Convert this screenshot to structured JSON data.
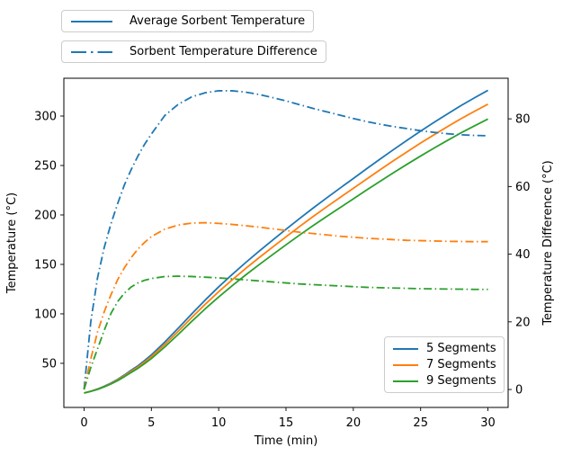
{
  "chart_data": {
    "type": "line",
    "title": "",
    "xlabel": "Time (min)",
    "ylabel_left": "Temperature (°C)",
    "ylabel_right": "Temperature Difference (°C)",
    "xlim": [
      -1.5,
      31.5
    ],
    "ylim_left": [
      5.4,
      338.2
    ],
    "ylim_right": [
      -5.3,
      92
    ],
    "xticks": [
      0,
      5,
      10,
      15,
      20,
      25,
      30
    ],
    "yticks_left": [
      50,
      100,
      150,
      200,
      250,
      300
    ],
    "yticks_right": [
      0,
      20,
      40,
      60,
      80
    ],
    "grid": false,
    "legend_positions": {
      "line_legend": "upper left, outside axes (two stacked boxes)",
      "segment_legend": "lower right"
    },
    "line_legend": [
      {
        "label": "Average Sorbent Temperature",
        "style": "solid",
        "color": "#1f77b4"
      },
      {
        "label": "Sorbent Temperature Difference",
        "style": "dashdot",
        "color": "#1f77b4"
      }
    ],
    "segment_legend": [
      {
        "label": "5 Segments",
        "style": "solid",
        "color": "#1f77b4"
      },
      {
        "label": "7 Segments",
        "style": "solid",
        "color": "#ff7f0e"
      },
      {
        "label": "9 Segments",
        "style": "solid",
        "color": "#2ca02c"
      }
    ],
    "x": [
      0,
      0.5,
      1,
      1.5,
      2,
      2.5,
      3,
      3.5,
      4,
      4.5,
      5,
      6,
      7,
      8,
      9,
      10,
      11,
      12,
      13,
      14,
      15,
      16,
      17,
      18,
      19,
      20,
      21,
      22,
      23,
      24,
      25,
      26,
      27,
      28,
      29,
      30
    ],
    "series": [
      {
        "name": "avg-temp-5-segments",
        "legend": "Average Sorbent Temperature",
        "segments": "5 Segments",
        "axis": "left",
        "style": "solid",
        "color": "#1f77b4",
        "values": [
          20,
          21.8,
          24,
          26.8,
          30,
          33.8,
          38.2,
          43,
          47.5,
          52.8,
          58.5,
          71.5,
          85.5,
          100,
          114,
          127.3,
          139.8,
          151.8,
          163.3,
          174.5,
          185.5,
          196.3,
          206.8,
          217,
          227,
          236.8,
          246.8,
          256.6,
          266.2,
          275.6,
          284.8,
          293.6,
          302.2,
          310.6,
          318.4,
          326
        ]
      },
      {
        "name": "avg-temp-7-segments",
        "legend": "Average Sorbent Temperature",
        "segments": "7 Segments",
        "axis": "left",
        "style": "solid",
        "color": "#ff7f0e",
        "values": [
          20,
          21.7,
          23.8,
          26.5,
          29.5,
          33.2,
          37.4,
          42,
          46.2,
          51.3,
          56.7,
          69.1,
          82.5,
          96.3,
          109.7,
          122.4,
          134.3,
          145.8,
          156.8,
          167.4,
          177.9,
          188.2,
          198.3,
          208,
          217.5,
          226.9,
          236.4,
          245.8,
          255,
          263.9,
          272.7,
          281.1,
          289.3,
          297.3,
          304.8,
          312
        ]
      },
      {
        "name": "avg-temp-9-segments",
        "legend": "Average Sorbent Temperature",
        "segments": "9 Segments",
        "axis": "left",
        "style": "solid",
        "color": "#2ca02c",
        "values": [
          20,
          21.6,
          23.6,
          26.2,
          29.1,
          32.5,
          36.5,
          40.8,
          44.9,
          49.7,
          54.8,
          66.6,
          79.3,
          92.4,
          105.1,
          117.1,
          128.4,
          139.3,
          149.7,
          159.8,
          169.8,
          179.6,
          189.1,
          198.3,
          207.3,
          216.2,
          225.3,
          234.1,
          242.8,
          251.3,
          259.6,
          267.6,
          275.4,
          283,
          290.1,
          297
        ]
      },
      {
        "name": "temp-diff-5-segments",
        "legend": "Sorbent Temperature Difference",
        "segments": "5 Segments",
        "axis": "right",
        "style": "dashdot",
        "color": "#1f77b4",
        "values": [
          0,
          20,
          33,
          42,
          49,
          55,
          60.5,
          65,
          69,
          72.5,
          75.5,
          81,
          84.3,
          86.5,
          87.7,
          88.3,
          88.3,
          87.9,
          87.2,
          86.3,
          85.3,
          84.2,
          83.1,
          82.1,
          81.1,
          80.1,
          79.2,
          78.4,
          77.7,
          77.1,
          76.5,
          76,
          75.6,
          75.3,
          75.1,
          75
        ]
      },
      {
        "name": "temp-diff-7-segments",
        "legend": "Sorbent Temperature Difference",
        "segments": "7 Segments",
        "axis": "right",
        "style": "dashdot",
        "color": "#ff7f0e",
        "values": [
          0,
          9,
          17,
          23,
          28,
          32.5,
          36,
          39,
          41.5,
          43.5,
          45.2,
          47.4,
          48.6,
          49.2,
          49.3,
          49.1,
          48.8,
          48.4,
          48,
          47.5,
          47,
          46.5,
          46.1,
          45.7,
          45.3,
          45,
          44.7,
          44.5,
          44.3,
          44.1,
          44,
          43.9,
          43.8,
          43.75,
          43.7,
          43.7
        ]
      },
      {
        "name": "temp-diff-9-segments",
        "legend": "Sorbent Temperature Difference",
        "segments": "9 Segments",
        "axis": "right",
        "style": "dashdot",
        "color": "#2ca02c",
        "values": [
          0,
          6.5,
          12,
          17.5,
          22.5,
          26,
          28.5,
          30.3,
          31.5,
          32.3,
          32.8,
          33.4,
          33.5,
          33.4,
          33.2,
          33,
          32.7,
          32.4,
          32.1,
          31.8,
          31.5,
          31.2,
          31,
          30.8,
          30.6,
          30.4,
          30.2,
          30.1,
          30,
          29.9,
          29.8,
          29.75,
          29.7,
          29.65,
          29.6,
          29.6
        ]
      }
    ]
  }
}
